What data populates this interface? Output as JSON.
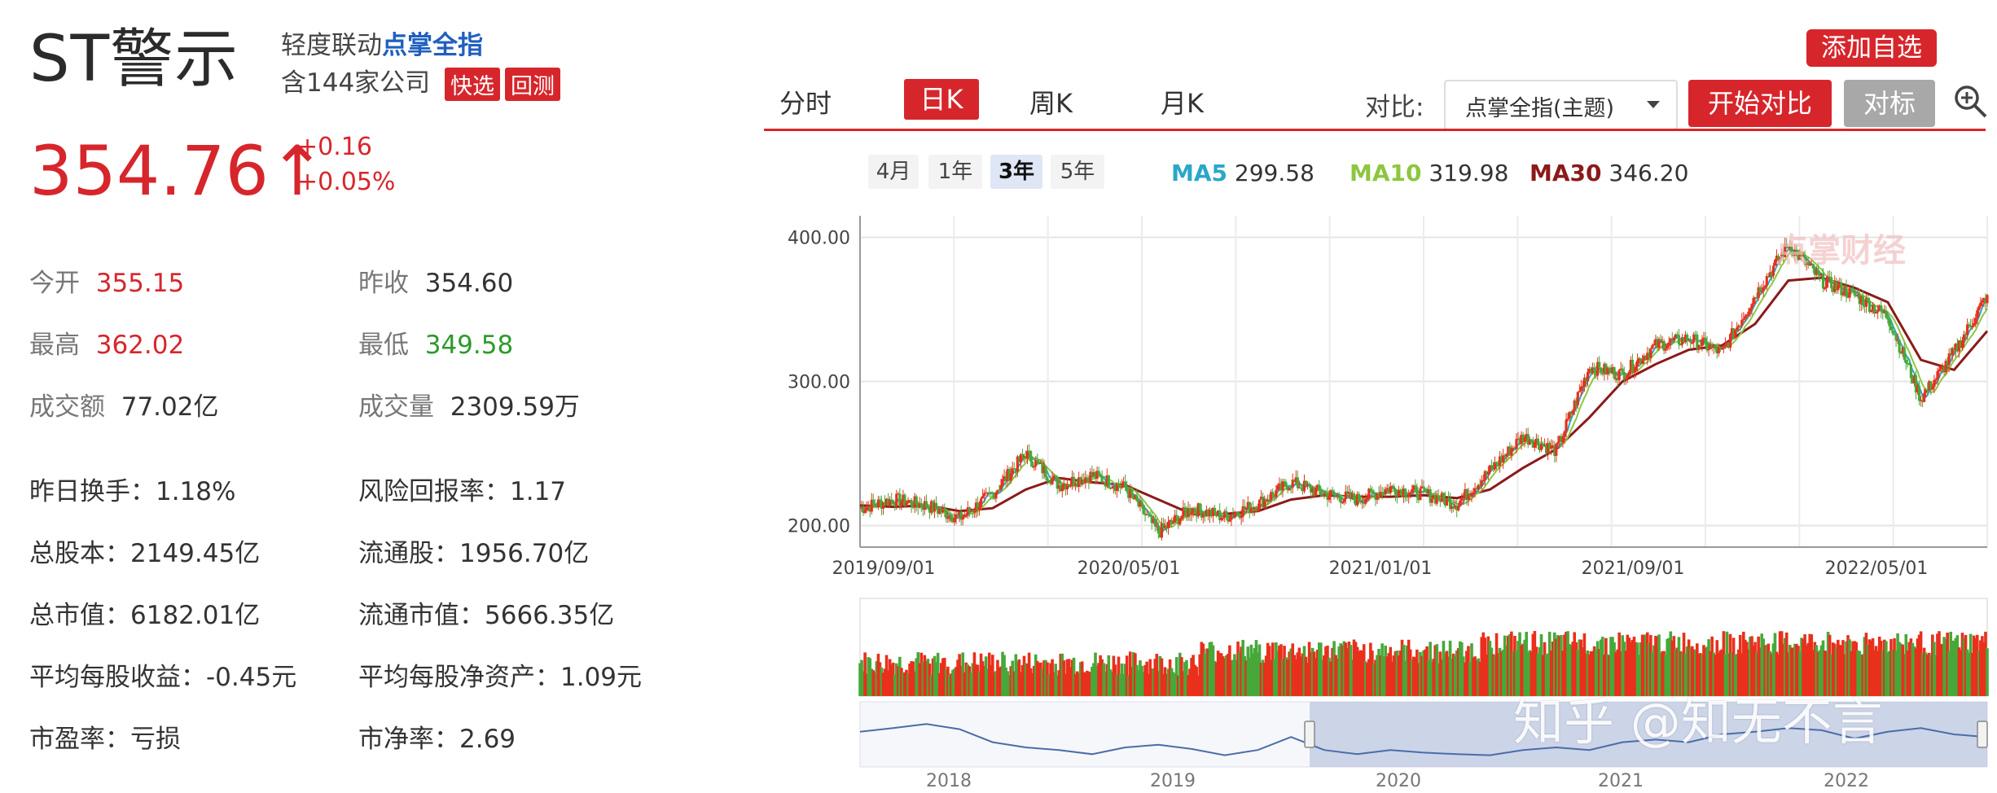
{
  "stock": {
    "name": "ST警示",
    "linked_prefix": "轻度联动",
    "linked_index": "点掌全指",
    "company_count": "含144家公司",
    "tag_quick": "快选",
    "tag_backtest": "回测",
    "price": "354.76",
    "arrow": "↑",
    "change": "+0.16",
    "change_pct": "+0.05%"
  },
  "stats": [
    {
      "label": "今开",
      "value": "355.15",
      "color": "red"
    },
    {
      "label": "昨收",
      "value": "354.60",
      "color": "normal"
    },
    {
      "label": "最高",
      "value": "362.02",
      "color": "red"
    },
    {
      "label": "最低",
      "value": "349.58",
      "color": "green"
    },
    {
      "label": "成交额",
      "value": "77.02亿",
      "color": "normal"
    },
    {
      "label": "成交量",
      "value": "2309.59万",
      "color": "normal"
    }
  ],
  "metrics": [
    "昨日换手：1.18%",
    "风险回报率：1.17",
    "总股本：2149.45亿",
    "流通股：1956.70亿",
    "总市值：6182.01亿",
    "流通市值：5666.35亿",
    "平均每股收益：-0.45元",
    "平均每股净资产：1.09元",
    "市盈率：亏损",
    "市净率：2.69"
  ],
  "toolbar": {
    "add_watch": "添加自选",
    "tabs": [
      "分时",
      "日K",
      "周K",
      "月K"
    ],
    "compare_label": "对比:",
    "compare_value": "点掌全指(主题)",
    "start_compare": "开始对比",
    "benchmark": "对标",
    "ranges": [
      "4月",
      "1年",
      "3年",
      "5年"
    ],
    "active_range": "3年"
  },
  "ma": [
    {
      "name": "MA5",
      "value": "299.58",
      "color": "#2aa7c9"
    },
    {
      "name": "MA10",
      "value": "319.98",
      "color": "#8dc63f"
    },
    {
      "name": "MA30",
      "value": "346.20",
      "color": "#8b1a1a"
    }
  ],
  "colors": {
    "accent": "#d6262c",
    "up": "#e8301c",
    "down": "#47a83a",
    "navigator": "#aab8d8"
  },
  "watermark_chart": "点掌财经",
  "watermark_site": "知乎 @知无不言",
  "chart_data": {
    "type": "line",
    "y_ticks": [
      "400.00",
      "300.00",
      "200.00"
    ],
    "ylim": [
      185,
      415
    ],
    "x_ticks": [
      "2019/09/01",
      "2020/05/01",
      "2021/01/01",
      "2021/09/01",
      "2022/05/01"
    ],
    "x": [
      "2019/09",
      "2019/10",
      "2019/11",
      "2019/12",
      "2020/01",
      "2020/02",
      "2020/03",
      "2020/04",
      "2020/05",
      "2020/06",
      "2020/07",
      "2020/08",
      "2020/09",
      "2020/10",
      "2020/11",
      "2020/12",
      "2021/01",
      "2021/02",
      "2021/03",
      "2021/04",
      "2021/05",
      "2021/06",
      "2021/07",
      "2021/08",
      "2021/09",
      "2021/10",
      "2021/11",
      "2021/12",
      "2022/01",
      "2022/02",
      "2022/03",
      "2022/04",
      "2022/05",
      "2022/06",
      "2022/07"
    ],
    "close": [
      212,
      218,
      214,
      205,
      222,
      250,
      228,
      235,
      226,
      195,
      212,
      206,
      215,
      230,
      222,
      218,
      226,
      222,
      215,
      238,
      262,
      252,
      310,
      305,
      325,
      330,
      320,
      360,
      395,
      370,
      360,
      345,
      288,
      320,
      360
    ],
    "ma30": [
      214,
      213,
      214,
      210,
      212,
      225,
      233,
      230,
      228,
      218,
      208,
      208,
      210,
      218,
      221,
      220,
      220,
      221,
      219,
      225,
      240,
      253,
      275,
      300,
      312,
      322,
      325,
      340,
      370,
      372,
      365,
      355,
      315,
      308,
      335
    ],
    "navigator_x_ticks": [
      "2018",
      "2019",
      "2020",
      "2021",
      "2022"
    ],
    "navigator": [
      0.55,
      0.62,
      0.7,
      0.6,
      0.35,
      0.25,
      0.2,
      0.12,
      0.25,
      0.3,
      0.22,
      0.1,
      0.2,
      0.45,
      0.2,
      0.12,
      0.2,
      0.15,
      0.12,
      0.1,
      0.2,
      0.25,
      0.2,
      0.35,
      0.4,
      0.35,
      0.5,
      0.55,
      0.62,
      0.58,
      0.42,
      0.55,
      0.62,
      0.5,
      0.45
    ],
    "navigator_range": [
      "2019/09",
      "2022/07"
    ]
  }
}
